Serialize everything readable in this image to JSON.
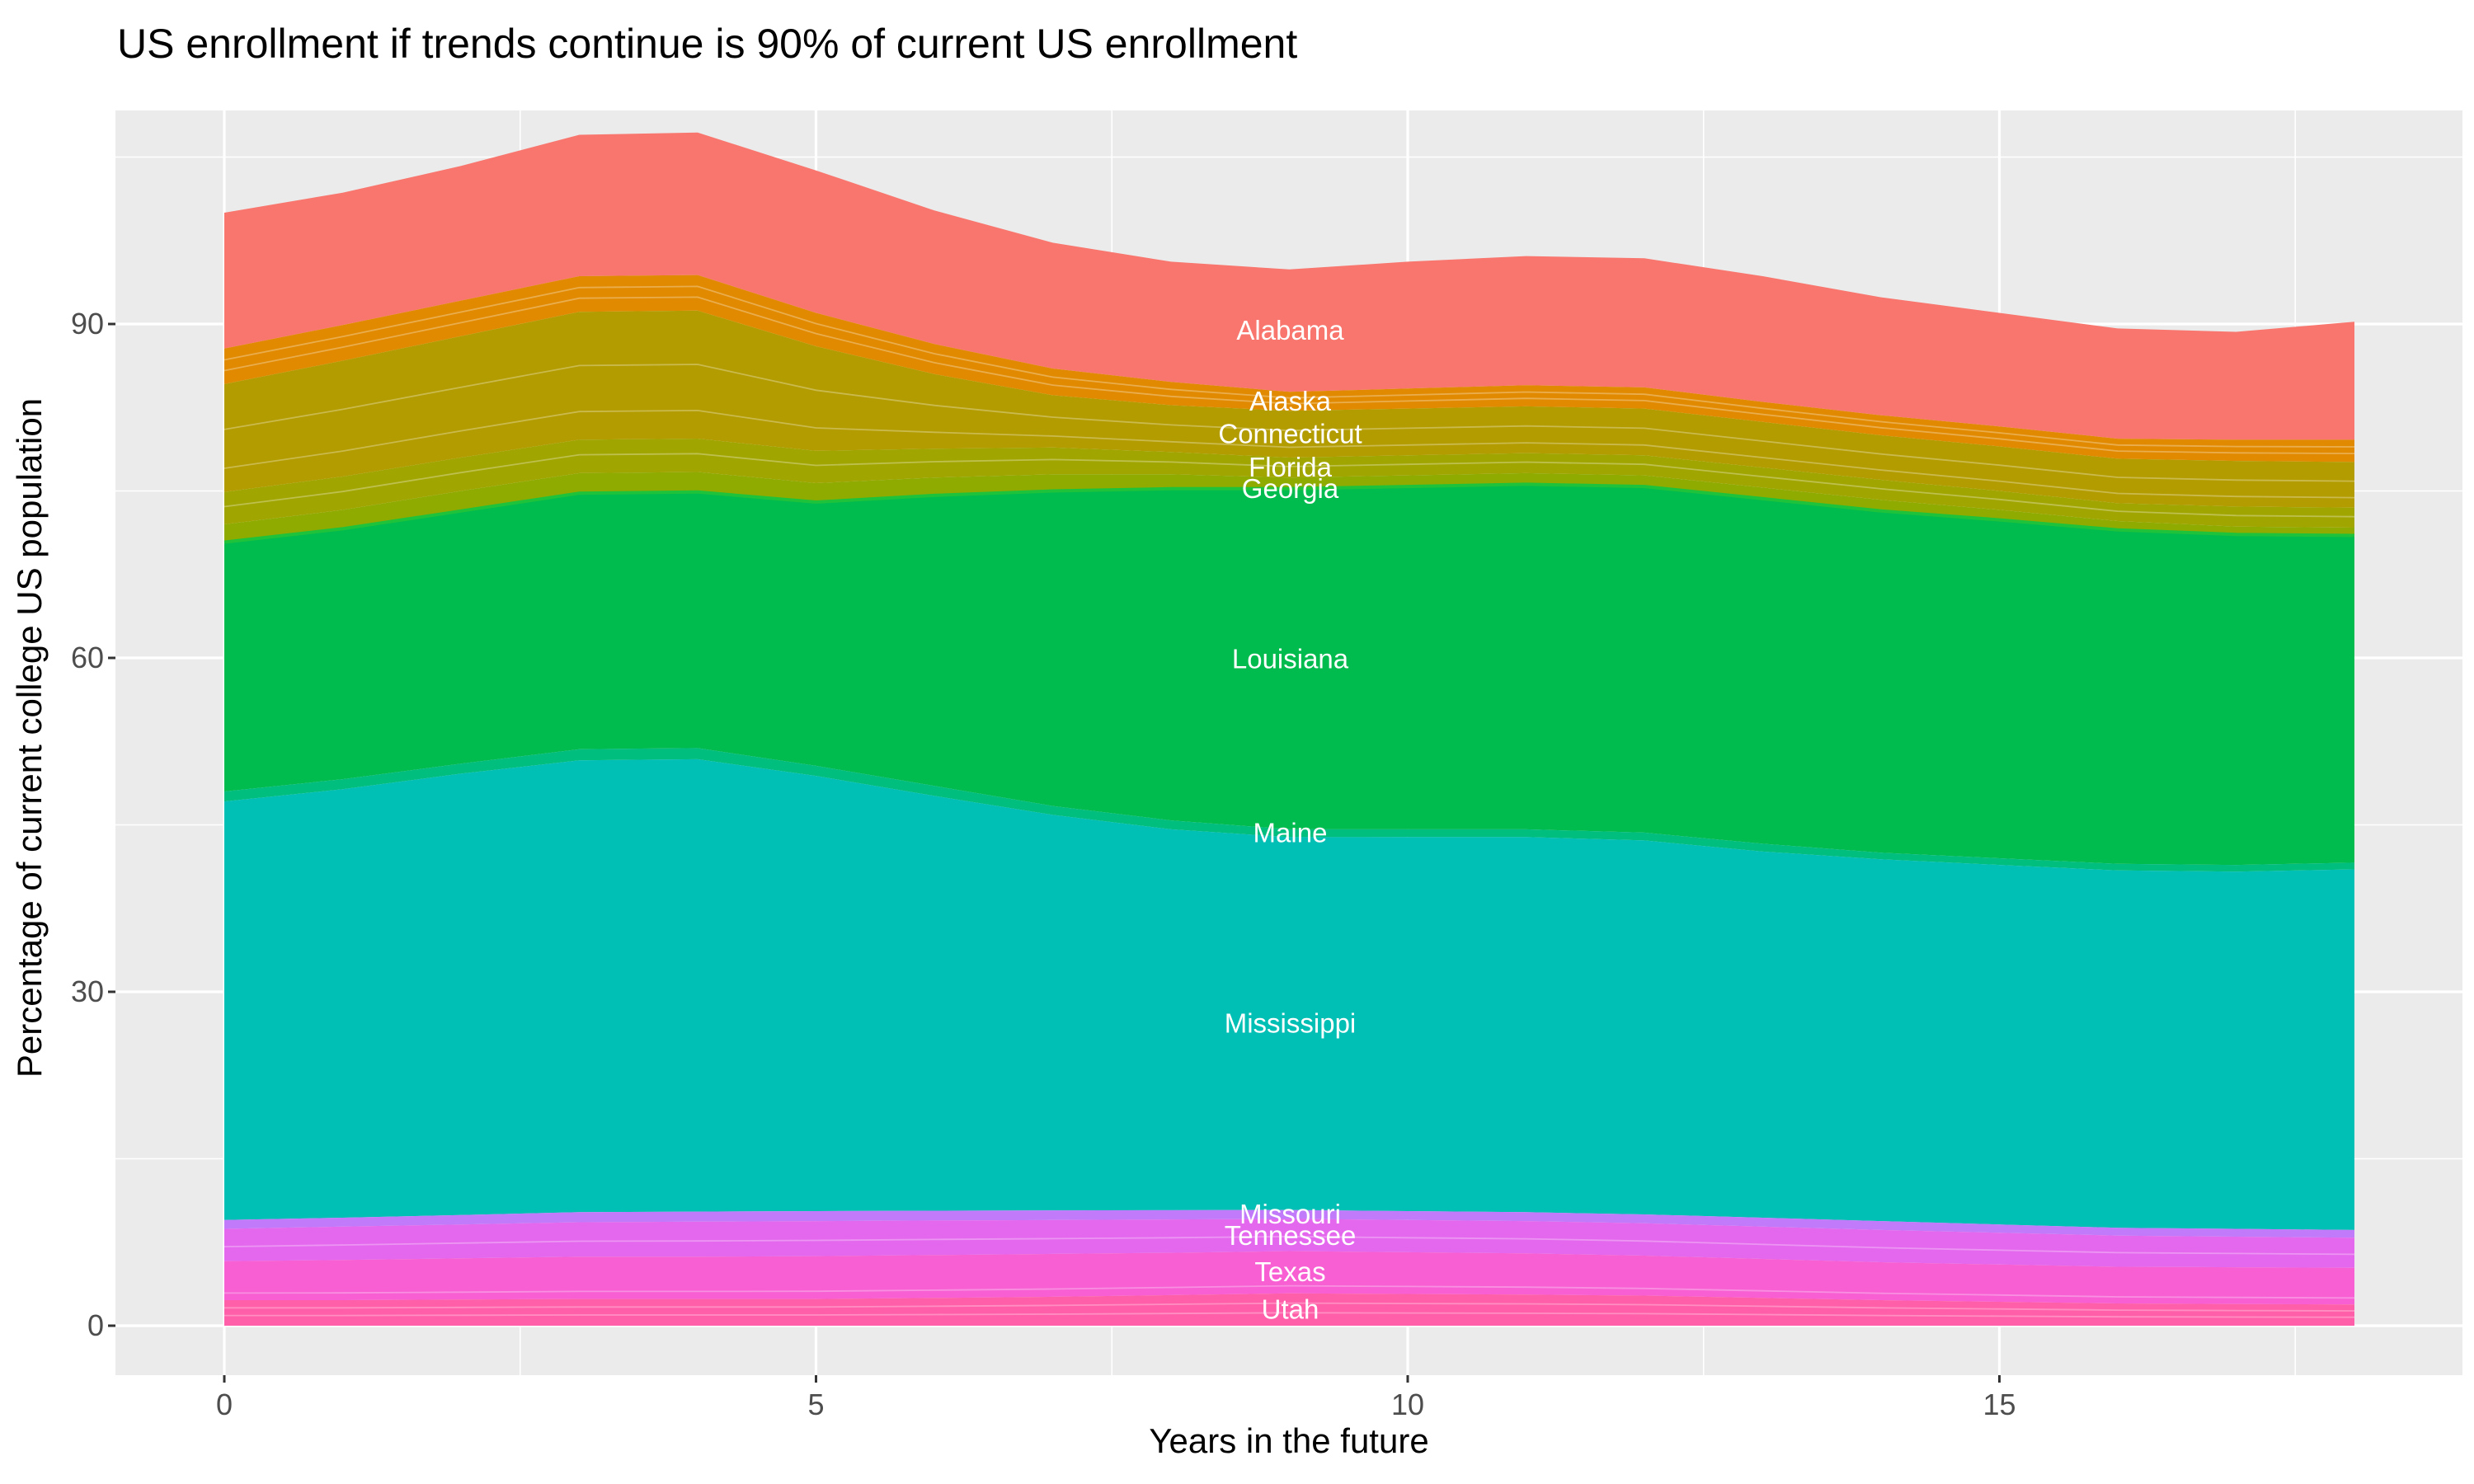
{
  "chart_data": {
    "type": "area",
    "stacked": true,
    "stack_order": "first_series_on_top",
    "title": "US enrollment if trends continue is 90% of current US enrollment",
    "xlabel": "Years in the future",
    "ylabel": "Percentage of current college US population",
    "x": [
      0,
      1,
      2,
      3,
      4,
      5,
      6,
      7,
      8,
      9,
      10,
      11,
      12,
      13,
      14,
      15,
      16,
      17,
      18
    ],
    "x_ticks": [
      0,
      5,
      10,
      15
    ],
    "y_ticks": [
      0,
      30,
      60,
      90
    ],
    "x_minor_ticks": [
      2.5,
      7.5,
      12.5,
      17.5
    ],
    "y_minor_ticks": [
      15,
      45,
      75,
      105
    ],
    "label_x": 9,
    "legend_position": "none",
    "grid": true,
    "series": [
      {
        "name": "Alabama",
        "color": "#F8766D",
        "values": [
          12.2,
          11.9,
          12.1,
          12.7,
          12.8,
          12.8,
          12.0,
          11.3,
          10.8,
          11.0,
          11.4,
          11.6,
          11.6,
          11.3,
          10.6,
          10.2,
          9.9,
          9.7,
          10.6
        ]
      },
      {
        "name": "Alaska",
        "color": "#E18A00",
        "values": [
          3.2,
          3.2,
          3.2,
          3.2,
          3.2,
          3.0,
          2.7,
          2.4,
          2.1,
          1.7,
          1.8,
          1.9,
          1.9,
          1.8,
          1.8,
          1.8,
          1.8,
          1.9,
          2.0
        ]
      },
      {
        "name": "Connecticut",
        "color": "#B39C00",
        "values": [
          9.7,
          10.4,
          10.9,
          11.5,
          11.5,
          9.4,
          6.7,
          4.7,
          4.2,
          4.2,
          4.2,
          4.2,
          4.2,
          4.1,
          4.0,
          4.0,
          4.0,
          4.1,
          4.1
        ]
      },
      {
        "name": "Florida",
        "color": "#A1A500",
        "values": [
          2.9,
          3.0,
          3.0,
          3.0,
          3.0,
          2.9,
          2.6,
          2.4,
          2.0,
          1.8,
          1.8,
          1.8,
          1.8,
          1.8,
          1.8,
          1.7,
          1.6,
          1.8,
          1.8
        ]
      },
      {
        "name": "Georgia",
        "color": "#8FAB00",
        "values": [
          1.6,
          1.7,
          1.8,
          1.8,
          1.8,
          1.7,
          1.6,
          1.5,
          1.3,
          1.0,
          1.0,
          1.0,
          1.0,
          1.0,
          1.0,
          0.9,
          0.8,
          0.7,
          0.7
        ]
      },
      {
        "name": "Louisiana",
        "color": "#00BB4E",
        "values": [
          22.4,
          22.5,
          22.7,
          23.0,
          23.0,
          23.7,
          26.1,
          28.3,
          29.8,
          30.6,
          30.8,
          31.0,
          31.1,
          31.0,
          30.7,
          30.4,
          30.0,
          29.7,
          29.4
        ]
      },
      {
        "name": "Maine",
        "color": "#00BE7D",
        "values": [
          0.9,
          0.9,
          0.9,
          1.0,
          1.0,
          0.9,
          0.9,
          0.8,
          0.8,
          0.7,
          0.7,
          0.7,
          0.7,
          0.7,
          0.6,
          0.6,
          0.6,
          0.6,
          0.6
        ]
      },
      {
        "name": "Mississippi",
        "color": "#00BFB4",
        "values": [
          37.6,
          38.5,
          39.65,
          40.6,
          40.65,
          39.1,
          37.27,
          35.54,
          34.22,
          33.5,
          33.6,
          33.7,
          33.6,
          32.9,
          32.5,
          32.3,
          32.1,
          32.1,
          32.4
        ]
      },
      {
        "name": "Missouri",
        "color": "#C17BFA",
        "values": [
          0.8,
          0.8,
          0.85,
          0.9,
          0.9,
          0.9,
          0.88,
          0.86,
          0.83,
          0.8,
          0.8,
          0.8,
          0.8,
          0.8,
          0.8,
          0.75,
          0.7,
          0.7,
          0.7
        ]
      },
      {
        "name": "Tennessee",
        "color": "#E468EE",
        "values": [
          2.9,
          3.0,
          3.05,
          3.1,
          3.15,
          3.15,
          3.1,
          3.05,
          3.0,
          2.9,
          2.9,
          2.9,
          2.9,
          2.9,
          2.9,
          2.85,
          2.8,
          2.75,
          2.7
        ]
      },
      {
        "name": "Texas",
        "color": "#F75FD3",
        "values": [
          3.5,
          3.6,
          3.7,
          3.8,
          3.8,
          3.85,
          3.85,
          3.85,
          3.8,
          3.8,
          3.75,
          3.7,
          3.6,
          3.5,
          3.4,
          3.35,
          3.3,
          3.3,
          3.3
        ]
      },
      {
        "name": "Utah",
        "color": "#FF5FA9",
        "values": [
          2.3,
          2.3,
          2.35,
          2.4,
          2.4,
          2.4,
          2.5,
          2.6,
          2.75,
          2.9,
          2.85,
          2.8,
          2.7,
          2.5,
          2.3,
          2.15,
          2.0,
          1.95,
          1.9
        ]
      }
    ],
    "style": {
      "panel_background": "#EBEBEB",
      "grid_color": "#FFFFFF",
      "tick_mark_color": "#333333",
      "tick_label_color": "#4D4D4D",
      "title_color": "#000000",
      "area_label_color": "#FFFFFF",
      "separator_color": "rgba(255,255,255,0.30)",
      "sublines": [
        {
          "series": "Alaska",
          "fracs": [
            0.38,
            0.68
          ]
        },
        {
          "series": "Connecticut",
          "fracs": [
            0.22,
            0.58
          ]
        },
        {
          "series": "Florida",
          "fracs": [
            0.55
          ]
        },
        {
          "series": "Tennessee",
          "fracs": [
            0.45
          ]
        },
        {
          "series": "Texas",
          "fracs": [
            0.18
          ]
        },
        {
          "series": "Utah",
          "fracs": [
            0.4,
            0.7
          ]
        }
      ],
      "bright_edge": {
        "above_series": "Louisiana",
        "color": "#1EC23B",
        "width": 4
      }
    }
  }
}
